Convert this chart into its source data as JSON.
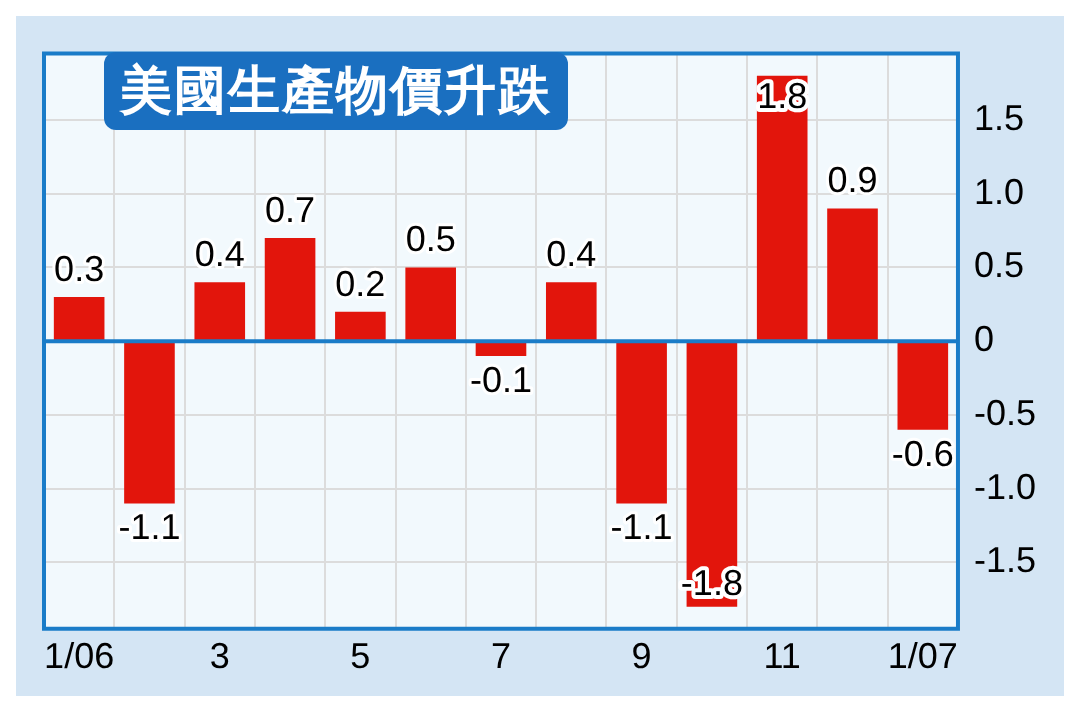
{
  "chart_data": {
    "type": "bar",
    "title": "美國生產物價升跌",
    "categories": [
      "1/06",
      null,
      "3",
      null,
      "5",
      null,
      "7",
      null,
      "9",
      null,
      "11",
      null,
      "1/07"
    ],
    "values": [
      0.3,
      -1.1,
      0.4,
      0.7,
      0.2,
      0.5,
      -0.1,
      0.4,
      -1.1,
      -1.8,
      1.8,
      0.9,
      -0.6
    ],
    "color": "#e2150c",
    "ylim": [
      -1.95,
      1.95
    ],
    "yticks": [
      {
        "value": -1.5,
        "label": "-1.5"
      },
      {
        "value": -1,
        "label": "-1.0"
      },
      -0.5,
      0,
      0.5,
      {
        "value": 1,
        "label": "1.0"
      },
      1.5
    ],
    "ref_lines": [
      {
        "axis": "y",
        "value": 0,
        "color": "#1a7cc8"
      }
    ],
    "grid": true,
    "data_labels": true,
    "legend": false
  }
}
